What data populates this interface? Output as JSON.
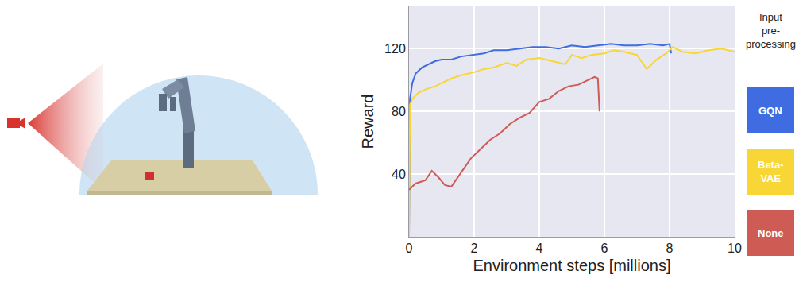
{
  "chart_data": {
    "type": "line",
    "x_label": "Environment steps [millions]",
    "y_label": "Reward",
    "legend_title": "Input pre-processing",
    "legend": "right",
    "grid": true,
    "xlim": [
      0,
      10
    ],
    "xticks": [
      0,
      2,
      4,
      6,
      8,
      10
    ],
    "ylim": [
      0,
      147
    ],
    "yticks": [
      40,
      80,
      120
    ],
    "series": [
      {
        "name": "GQN",
        "color": "#3f6ce0",
        "x": [
          0,
          0.03,
          0.1,
          0.2,
          0.4,
          0.6,
          0.8,
          1.0,
          1.3,
          1.6,
          2.0,
          2.3,
          2.6,
          3.0,
          3.4,
          3.8,
          4.2,
          4.6,
          5.0,
          5.4,
          5.8,
          6.2,
          6.6,
          7.0,
          7.4,
          7.8,
          8.0,
          8.05
        ],
        "values": [
          0,
          88,
          98,
          104,
          108,
          110,
          112,
          113,
          113,
          115,
          116,
          117,
          119,
          119,
          120,
          121,
          121,
          120,
          122,
          121,
          122,
          123,
          122,
          122,
          123,
          122,
          123,
          117
        ]
      },
      {
        "name": "Beta-VAE",
        "color": "#f7d635",
        "x": [
          0,
          0.03,
          0.1,
          0.3,
          0.5,
          0.8,
          1.0,
          1.3,
          1.6,
          2.0,
          2.3,
          2.6,
          3.0,
          3.3,
          3.6,
          4.0,
          4.4,
          4.8,
          5.0,
          5.3,
          5.6,
          6.0,
          6.3,
          6.6,
          7.0,
          7.3,
          7.6,
          7.9,
          8.1,
          8.4,
          8.8,
          9.2,
          9.6,
          10
        ],
        "values": [
          0,
          84,
          88,
          92,
          94,
          96,
          98,
          101,
          103,
          105,
          107,
          108,
          111,
          109,
          113,
          114,
          112,
          110,
          116,
          114,
          116,
          117,
          119,
          118,
          116,
          107,
          113,
          117,
          121,
          118,
          117,
          119,
          120,
          118
        ]
      },
      {
        "name": "None",
        "color": "#cf5b55",
        "x": [
          0,
          0.2,
          0.5,
          0.7,
          0.9,
          1.1,
          1.3,
          1.6,
          1.9,
          2.2,
          2.5,
          2.8,
          3.1,
          3.4,
          3.7,
          4.0,
          4.3,
          4.6,
          4.9,
          5.2,
          5.5,
          5.7,
          5.8,
          5.85
        ],
        "values": [
          30,
          34,
          36,
          42,
          38,
          33,
          32,
          41,
          50,
          56,
          62,
          66,
          72,
          76,
          79,
          86,
          88,
          93,
          96,
          97,
          100,
          102,
          101,
          80
        ]
      }
    ]
  }
}
